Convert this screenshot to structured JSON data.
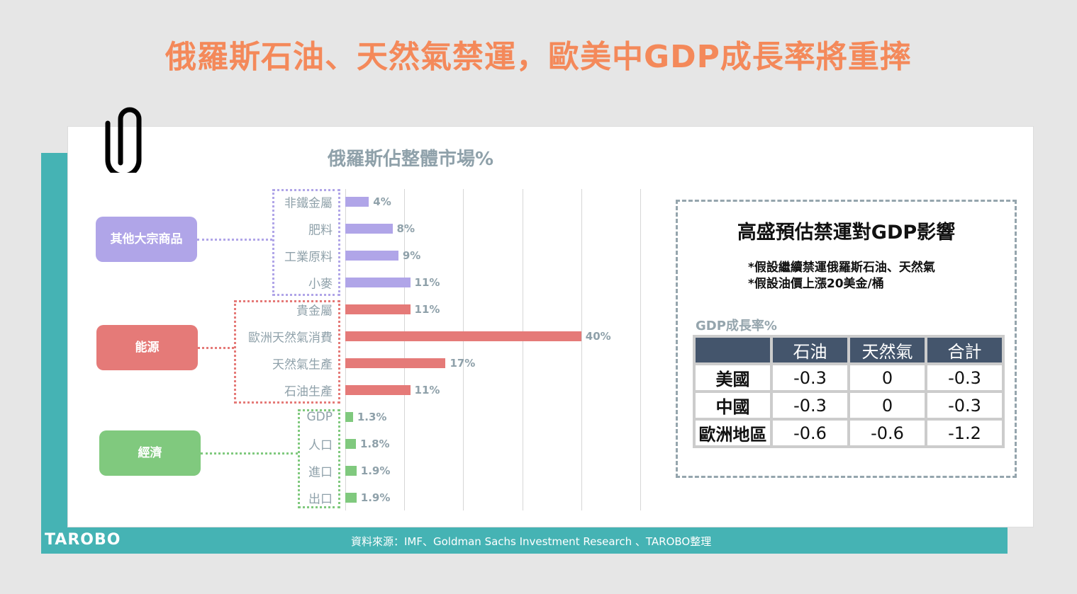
{
  "title": "俄羅斯石油、天然氣禁運，歐美中GDP成長率將重摔",
  "chart_data": {
    "type": "bar",
    "orientation": "horizontal",
    "title": "俄羅斯佔整體市場%",
    "categories": [
      "非鐵金屬",
      "肥料",
      "工業原料",
      "小麥",
      "貴金屬",
      "歐洲天然氣消費",
      "天然氣生產",
      "石油生產",
      "GDP",
      "人口",
      "進口",
      "出口"
    ],
    "values": [
      4,
      8,
      9,
      11,
      11,
      40,
      17,
      11,
      1.3,
      1.8,
      1.9,
      1.9
    ],
    "value_labels": [
      "4%",
      "8%",
      "9%",
      "11%",
      "11%",
      "40%",
      "17%",
      "11%",
      "1.3%",
      "1.8%",
      "1.9%",
      "1.9%"
    ],
    "groups": [
      {
        "label": "其他大宗商品",
        "color": "#b0a5e8",
        "members": [
          0,
          1,
          2,
          3
        ]
      },
      {
        "label": "能源",
        "color": "#e57a78",
        "members": [
          4,
          5,
          6,
          7
        ]
      },
      {
        "label": "經濟",
        "color": "#80c97e",
        "members": [
          8,
          9,
          10,
          11
        ]
      }
    ],
    "xlim": [
      0,
      50
    ],
    "grid": true
  },
  "gdp_box": {
    "title": "高盛預估禁運對GDP影響",
    "notes": [
      "*假設繼續禁運俄羅斯石油、天然氣",
      "*假設油價上漲20美金/桶"
    ],
    "table_label": "GDP成長率%",
    "headers": [
      "",
      "石油",
      "天然氣",
      "合計"
    ],
    "rows": [
      [
        "美國",
        "-0.3",
        "0",
        "-0.3"
      ],
      [
        "中國",
        "-0.3",
        "0",
        "-0.3"
      ],
      [
        "歐洲地區",
        "-0.6",
        "-0.6",
        "-1.2"
      ]
    ]
  },
  "footer": {
    "logo": "TAROBO",
    "source": "資料來源：IMF、Goldman Sachs Investment Research 、TAROBO整理"
  },
  "colors": {
    "title": "#f4895a",
    "teal": "#45b3b4",
    "table_header": "#44556c"
  }
}
